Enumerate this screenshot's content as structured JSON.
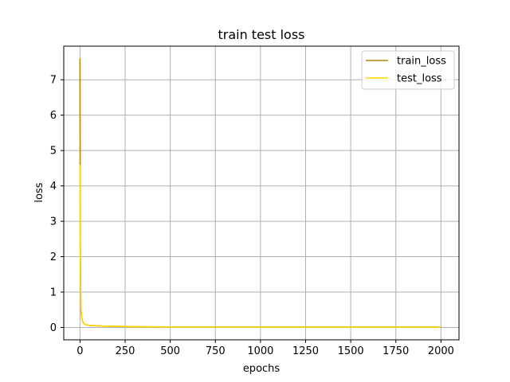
{
  "chart_data": {
    "type": "line",
    "title": "train test loss",
    "xlabel": "epochs",
    "ylabel": "loss",
    "xlim": [
      -90,
      2100
    ],
    "ylim": [
      -0.35,
      7.95
    ],
    "xticks": [
      0,
      250,
      500,
      750,
      1000,
      1250,
      1500,
      1750,
      2000
    ],
    "yticks": [
      0,
      1,
      2,
      3,
      4,
      5,
      6,
      7
    ],
    "grid": true,
    "legend_position": "top-right",
    "series": [
      {
        "name": "train_loss",
        "color": "#b8860b",
        "x": [
          0,
          1,
          2,
          3,
          5,
          8,
          12,
          20,
          30,
          50,
          80,
          120,
          200,
          300,
          500,
          1000,
          1500,
          2000
        ],
        "y": [
          7.6,
          4.6,
          2.4,
          1.3,
          0.6,
          0.35,
          0.2,
          0.12,
          0.08,
          0.06,
          0.05,
          0.04,
          0.03,
          0.02,
          0.015,
          0.01,
          0.01,
          0.01
        ]
      },
      {
        "name": "test_loss",
        "color": "#ffd700",
        "x": [
          0,
          1,
          2,
          3,
          5,
          8,
          12,
          20,
          30,
          50,
          80,
          120,
          200,
          300,
          500,
          1000,
          1500,
          2000
        ],
        "y": [
          4.6,
          2.9,
          1.9,
          1.2,
          0.6,
          0.35,
          0.2,
          0.12,
          0.08,
          0.06,
          0.05,
          0.04,
          0.03,
          0.02,
          0.015,
          0.01,
          0.01,
          0.01
        ]
      }
    ]
  }
}
